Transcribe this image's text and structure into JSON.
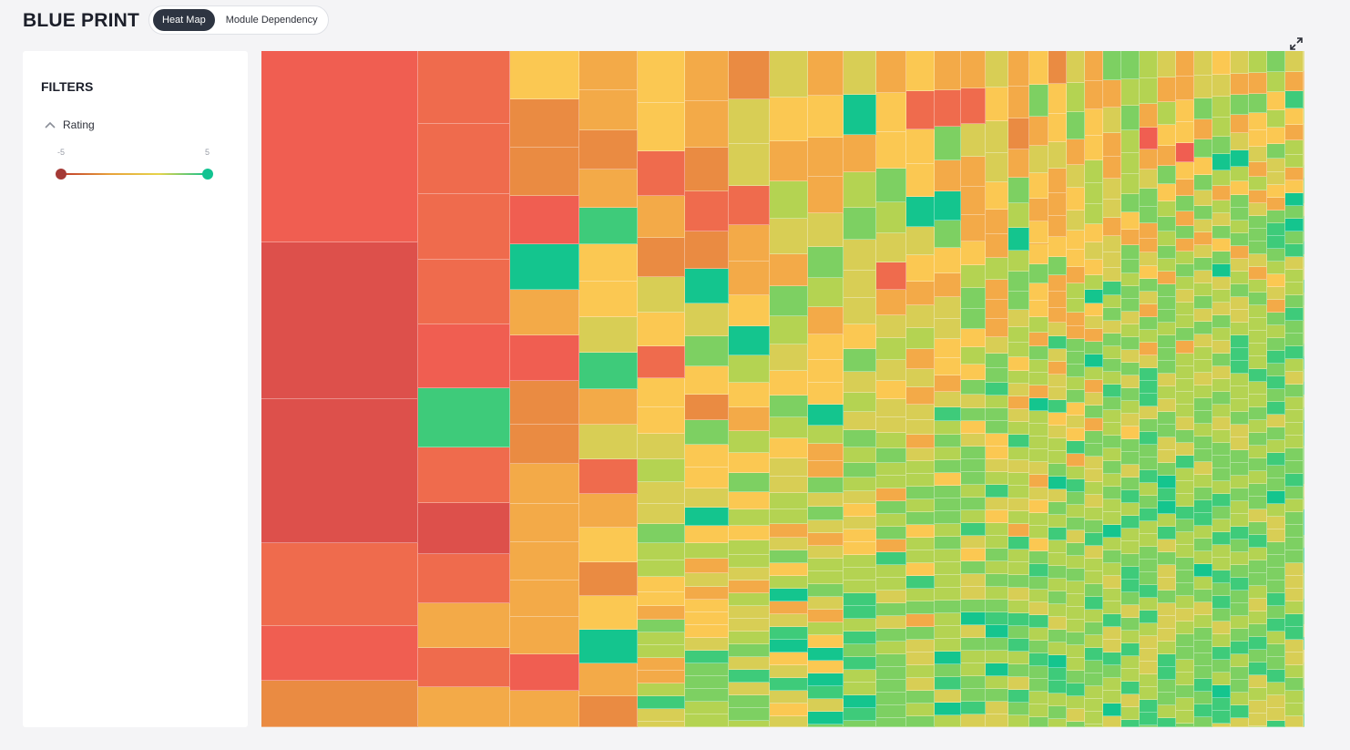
{
  "header": {
    "app_title": "BLUE PRINT",
    "tabs": [
      {
        "label": "Heat Map",
        "active": true
      },
      {
        "label": "Module Dependency",
        "active": false
      }
    ],
    "expand_icon": "expand-arrows-icon"
  },
  "filters": {
    "title": "FILTERS",
    "rating": {
      "label": "Rating",
      "expanded": true,
      "toggle_icon": "chevron-up-icon",
      "min_label": "-5",
      "max_label": "5",
      "selected_min": -5,
      "selected_max": 5
    }
  },
  "heatmap": {
    "colors": {
      "deep_red": "#dd504b",
      "red": "#f05e51",
      "red_orange": "#ef6b4d",
      "orange": "#ea8b42",
      "light_orange": "#f3aa48",
      "yellow": "#fbc852",
      "yellow_green": "#d8ce55",
      "light_green": "#b4d352",
      "green": "#7dd062",
      "teal_green": "#3ecb7a",
      "teal": "#14c58e"
    },
    "rating_range": [
      -5,
      5
    ]
  }
}
